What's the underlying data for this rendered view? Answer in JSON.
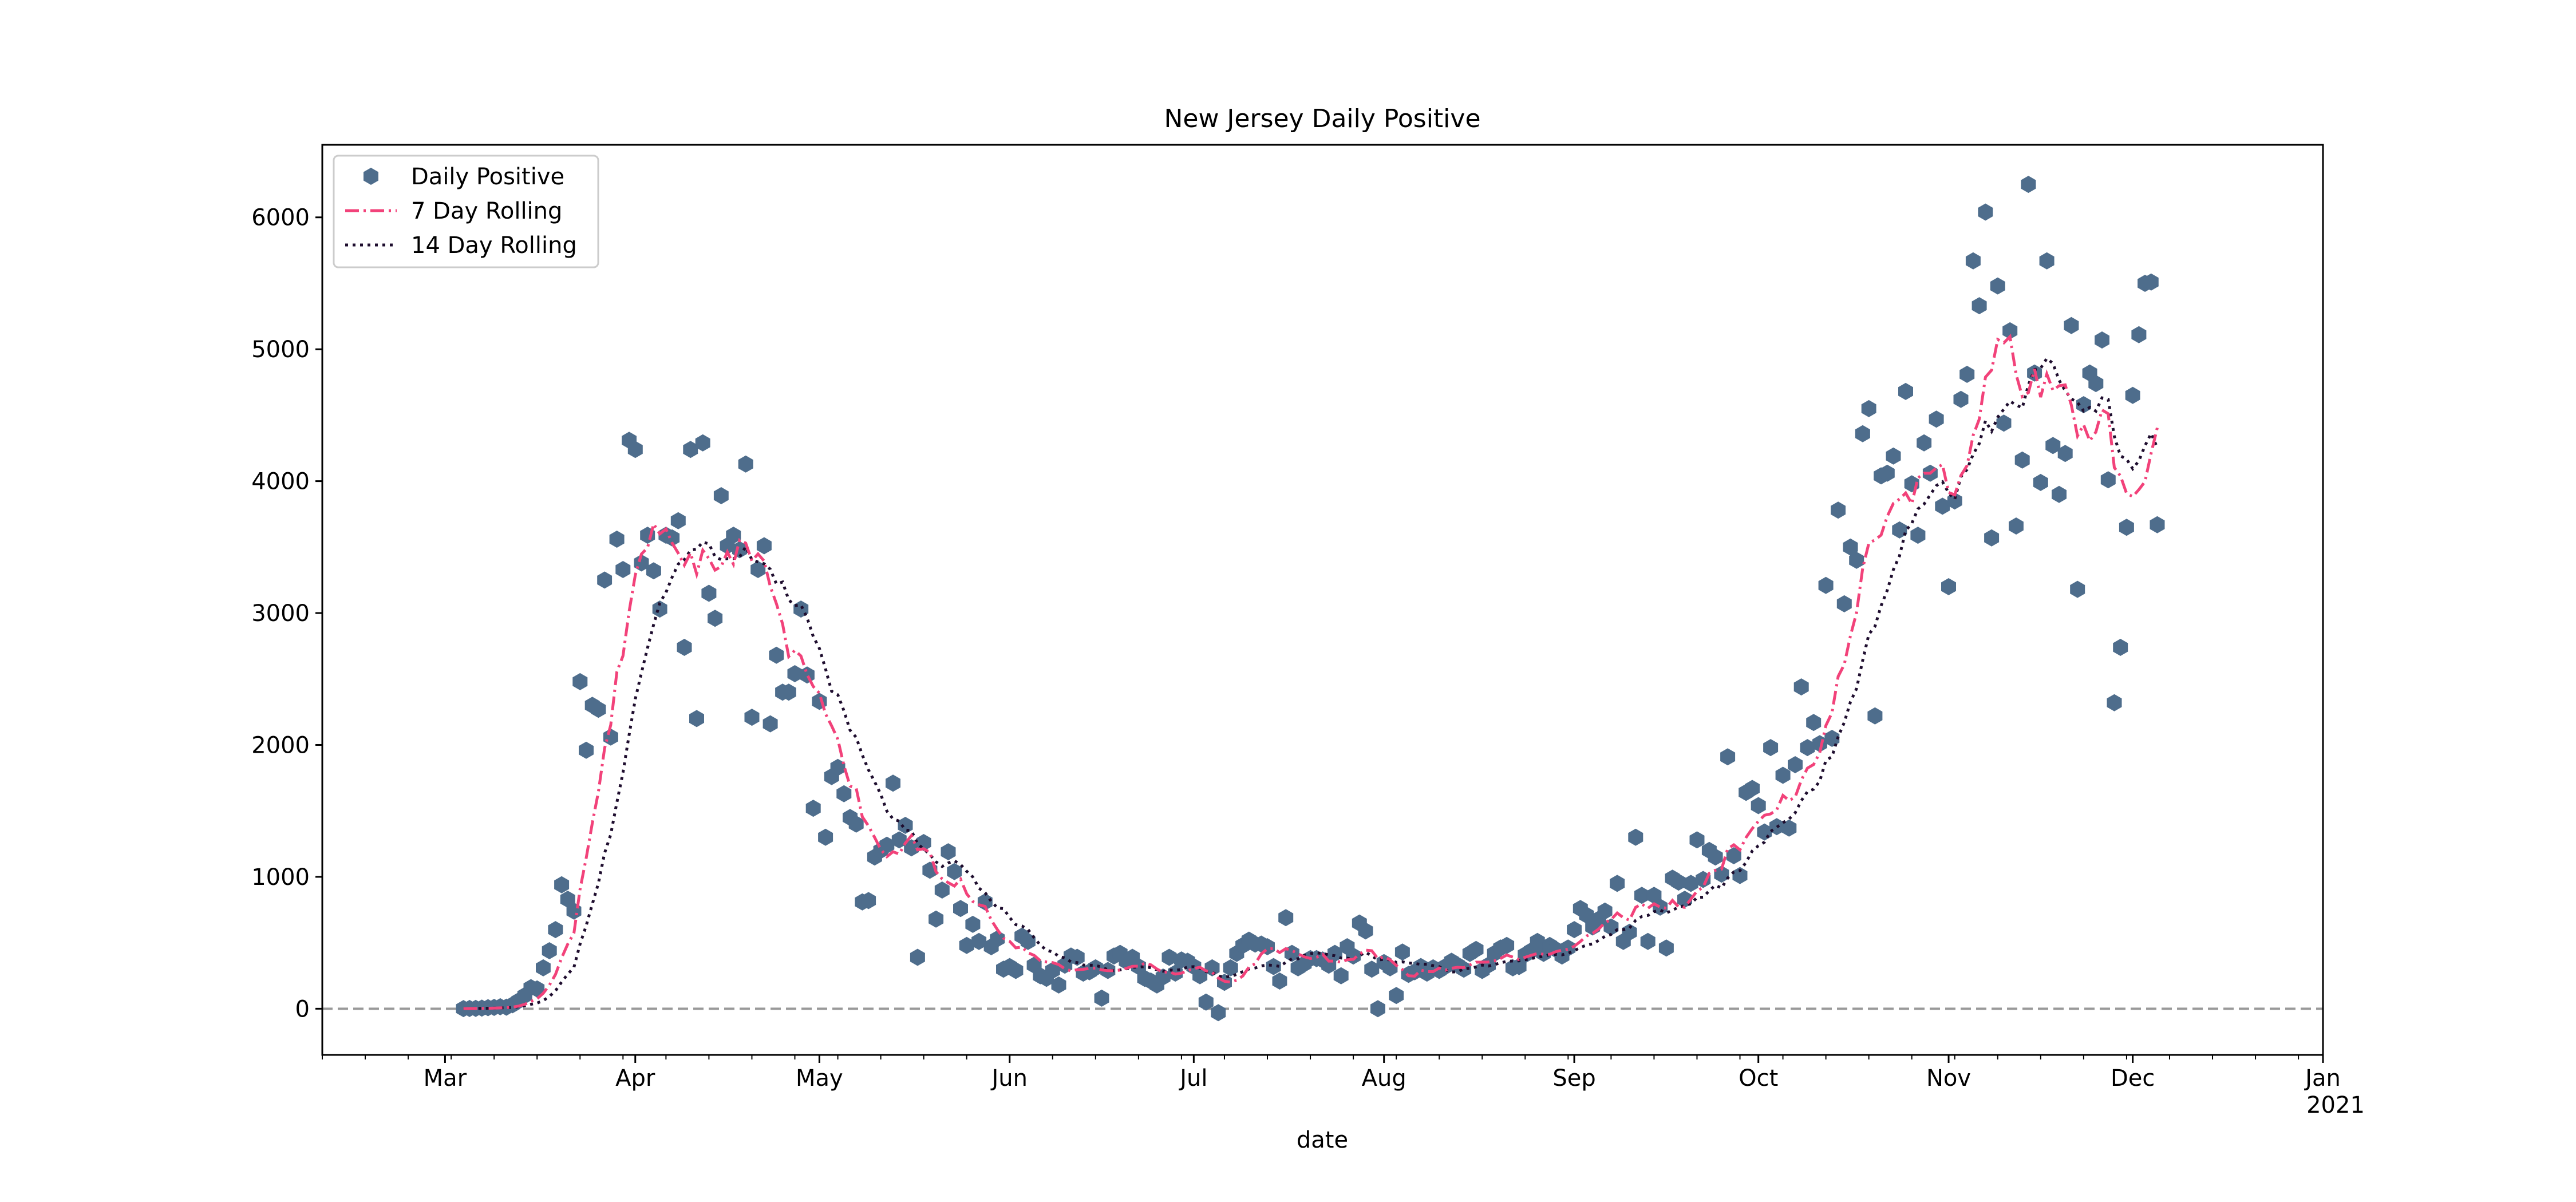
{
  "chart_data": {
    "type": "scatter",
    "title": "New Jersey Daily Positive",
    "xlabel": "date",
    "ylabel": "",
    "x_range": [
      "2020-02-10",
      "2021-01-01"
    ],
    "ylim": [
      -350,
      6550
    ],
    "yticks": [
      0,
      1000,
      2000,
      3000,
      4000,
      5000,
      6000
    ],
    "xticks": [
      {
        "date": "2020-03-01",
        "label": "Mar"
      },
      {
        "date": "2020-04-01",
        "label": "Apr"
      },
      {
        "date": "2020-05-01",
        "label": "May"
      },
      {
        "date": "2020-06-01",
        "label": "Jun"
      },
      {
        "date": "2020-07-01",
        "label": "Jul"
      },
      {
        "date": "2020-08-01",
        "label": "Aug"
      },
      {
        "date": "2020-09-01",
        "label": "Sep"
      },
      {
        "date": "2020-10-01",
        "label": "Oct"
      },
      {
        "date": "2020-11-01",
        "label": "Nov"
      },
      {
        "date": "2020-12-01",
        "label": "Dec"
      },
      {
        "date": "2021-01-01",
        "label": "Jan"
      }
    ],
    "year_label": "2021",
    "grid": false,
    "legend_position": "top-left",
    "reference_line": {
      "y": 0,
      "style": "dashed",
      "color": "#999999"
    },
    "start_date": "2020-03-04",
    "series": [
      {
        "name": "Daily Positive",
        "kind": "scatter",
        "marker": "hexagon",
        "color": "#4e6d8c",
        "values": [
          1,
          2,
          3,
          5,
          8,
          10,
          15,
          12,
          30,
          60,
          100,
          160,
          150,
          310,
          440,
          600,
          940,
          830,
          740,
          2480,
          1960,
          2300,
          2270,
          3250,
          2060,
          3560,
          3330,
          4310,
          4240,
          3380,
          3590,
          3320,
          3030,
          3590,
          3570,
          3700,
          2740,
          4240,
          2200,
          4290,
          3150,
          2960,
          3890,
          3510,
          3590,
          3480,
          4130,
          2210,
          3330,
          3510,
          2160,
          2680,
          2400,
          2400,
          2540,
          3030,
          2530,
          1520,
          2330,
          1300,
          1760,
          1830,
          1630,
          1450,
          1400,
          810,
          820,
          1150,
          1200,
          1240,
          1710,
          1280,
          1390,
          1220,
          390,
          1260,
          1050,
          680,
          900,
          1190,
          1040,
          760,
          480,
          640,
          510,
          810,
          470,
          530,
          300,
          320,
          290,
          550,
          510,
          330,
          250,
          230,
          290,
          180,
          330,
          400,
          390,
          270,
          280,
          310,
          80,
          290,
          400,
          420,
          360,
          390,
          320,
          230,
          210,
          180,
          240,
          390,
          270,
          370,
          360,
          320,
          250,
          50,
          310,
          -30,
          200,
          310,
          420,
          480,
          520,
          490,
          490,
          470,
          320,
          210,
          690,
          420,
          310,
          340,
          380,
          380,
          370,
          330,
          420,
          250,
          470,
          400,
          650,
          590,
          300,
          0,
          350,
          310,
          100,
          430,
          260,
          280,
          320,
          270,
          310,
          290,
          320,
          360,
          330,
          300,
          420,
          450,
          290,
          330,
          420,
          460,
          480,
          310,
          320,
          410,
          440,
          510,
          420,
          480,
          450,
          400,
          460,
          600,
          760,
          710,
          620,
          680,
          740,
          620,
          950,
          510,
          580,
          1300,
          860,
          510,
          860,
          770,
          460,
          990,
          960,
          830,
          950,
          1280,
          980,
          1200,
          1150,
          1020,
          1910,
          1160,
          1010,
          1640,
          1670,
          1540,
          1340,
          1980,
          1380,
          1770,
          1370,
          1850,
          2440,
          1980,
          2170,
          2010,
          3210,
          2050,
          3780,
          3070,
          3500,
          3400,
          4360,
          4550,
          2220,
          4040,
          4060,
          4190,
          3630,
          4680,
          3980,
          3590,
          4290,
          4060,
          4470,
          3810,
          3200,
          3850,
          4620,
          4810,
          5670,
          5330,
          6040,
          3570,
          5480,
          4440,
          5140,
          3660,
          4160,
          6250,
          4820,
          3990,
          5670,
          4270,
          3900,
          4210,
          5180,
          3180,
          4580,
          4820,
          4740,
          5070,
          4010,
          2320,
          2740,
          3650,
          4650,
          5110,
          5500,
          5510,
          3670
        ]
      },
      {
        "name": "7 Day Rolling",
        "kind": "line",
        "style": "dashdot",
        "color": "#f2427a"
      },
      {
        "name": "14 Day Rolling",
        "kind": "line",
        "style": "dotted",
        "color": "#1e0d2e"
      }
    ]
  }
}
